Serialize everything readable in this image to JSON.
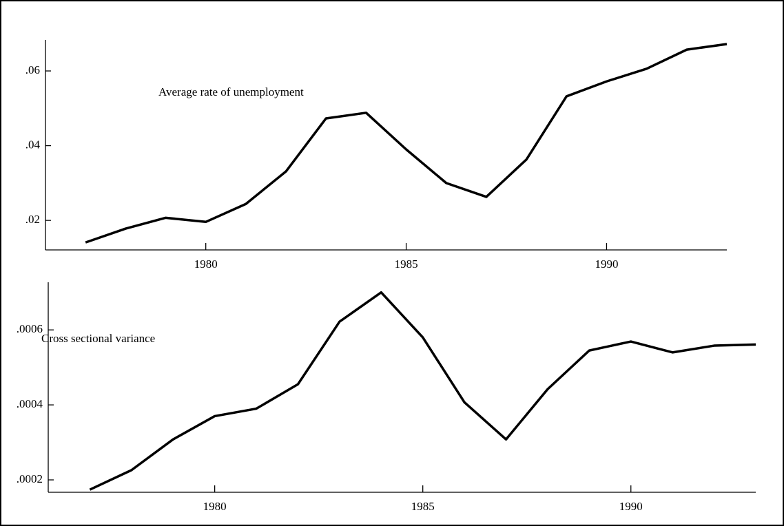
{
  "chart_data": [
    {
      "type": "line",
      "annotation": "Average rate of unemployment",
      "x": [
        1977,
        1978,
        1979,
        1980,
        1981,
        1982,
        1983,
        1984,
        1985,
        1986,
        1987,
        1988,
        1989,
        1990,
        1991,
        1992,
        1993
      ],
      "series": [
        {
          "color": "#000000",
          "values": [
            0.0141,
            0.0178,
            0.0207,
            0.0196,
            0.0244,
            0.0331,
            0.0473,
            0.0488,
            0.039,
            0.03,
            0.0263,
            0.0363,
            0.0532,
            0.0572,
            0.0606,
            0.0657,
            0.0672
          ]
        }
      ],
      "xlim": [
        1976,
        1993
      ],
      "xticks": [
        1980,
        1985,
        1990
      ],
      "ylim": [
        0.0121,
        0.0683
      ],
      "yticks": [
        {
          "value": 0.02,
          "label": ".02"
        },
        {
          "value": 0.04,
          "label": ".04"
        },
        {
          "value": 0.06,
          "label": ".06"
        }
      ]
    },
    {
      "type": "line",
      "annotation": "Cross sectional variance",
      "x": [
        1977,
        1978,
        1979,
        1980,
        1981,
        1982,
        1983,
        1984,
        1985,
        1986,
        1987,
        1988,
        1989,
        1990,
        1991,
        1992,
        1993
      ],
      "series": [
        {
          "color": "#000000",
          "values": [
            0.000174,
            0.000226,
            0.000308,
            0.00037,
            0.00039,
            0.000455,
            0.000622,
            0.0007,
            0.00058,
            0.000407,
            0.000308,
            0.000442,
            0.000545,
            0.000569,
            0.00054,
            0.000558,
            0.000561
          ]
        }
      ],
      "xlim": [
        1976,
        1993
      ],
      "xticks": [
        1980,
        1985,
        1990
      ],
      "ylim": [
        0.000167,
        0.000727
      ],
      "yticks": [
        {
          "value": 0.0002,
          "label": ".0002"
        },
        {
          "value": 0.0004,
          "label": ".0004"
        },
        {
          "value": 0.0006,
          "label": ".0006"
        }
      ]
    }
  ]
}
